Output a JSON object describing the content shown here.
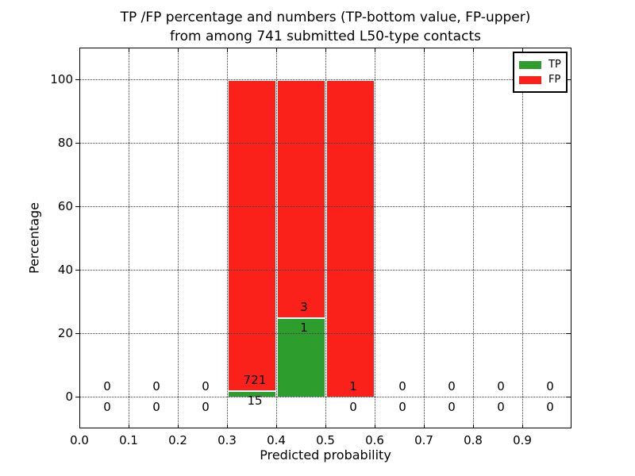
{
  "figure": {
    "title_line1": "TP /FP percentage and numbers (TP-bottom value, FP-upper)",
    "title_line2": "from among 741 submitted L50-type contacts",
    "xlabel": "Predicted probability",
    "ylabel": "Percentage"
  },
  "legend": {
    "items": [
      {
        "label": "TP",
        "color": "#2d9e2d"
      },
      {
        "label": "FP",
        "color": "#fa211b"
      }
    ]
  },
  "chart_data": {
    "type": "bar",
    "stacked": true,
    "title": "TP /FP percentage and numbers (TP-bottom value, FP-upper)\nfrom among 741 submitted L50-type contacts",
    "xlabel": "Predicted probability",
    "ylabel": "Percentage",
    "xlim": [
      0.0,
      1.0
    ],
    "ylim": [
      -10,
      110
    ],
    "grid": "dotted, drawn above bars",
    "legend_position": "upper right",
    "total_contacts": 741,
    "bin_edges": [
      0.0,
      0.1,
      0.2,
      0.3,
      0.4,
      0.5,
      0.6,
      0.7,
      0.8,
      0.9,
      1.0
    ],
    "categories": [
      "0.0-0.1",
      "0.1-0.2",
      "0.2-0.3",
      "0.3-0.4",
      "0.4-0.5",
      "0.5-0.6",
      "0.6-0.7",
      "0.7-0.8",
      "0.8-0.9",
      "0.9-1.0"
    ],
    "xticks": {
      "values": [
        0.0,
        0.1,
        0.2,
        0.3,
        0.4,
        0.5,
        0.6,
        0.7,
        0.8,
        0.9
      ],
      "labels": [
        "0.0",
        "0.1",
        "0.2",
        "0.3",
        "0.4",
        "0.5",
        "0.6",
        "0.7",
        "0.8",
        "0.9"
      ]
    },
    "yticks": {
      "values": [
        0,
        20,
        40,
        60,
        80,
        100
      ],
      "labels": [
        "0",
        "20",
        "40",
        "60",
        "80",
        "100"
      ]
    },
    "series": [
      {
        "name": "TP",
        "color": "#2d9e2d",
        "percent": [
          0,
          0,
          0,
          2.04,
          25,
          0,
          0,
          0,
          0,
          0
        ],
        "counts": [
          0,
          0,
          0,
          15,
          1,
          0,
          0,
          0,
          0,
          0
        ]
      },
      {
        "name": "FP",
        "color": "#fa211b",
        "percent": [
          0,
          0,
          0,
          97.96,
          75,
          100,
          0,
          0,
          0,
          0
        ],
        "counts": [
          0,
          0,
          0,
          721,
          3,
          1,
          0,
          0,
          0,
          0
        ]
      }
    ],
    "annotations": "FP count shown above top of TP bar, TP count shown below it, for every bin"
  }
}
